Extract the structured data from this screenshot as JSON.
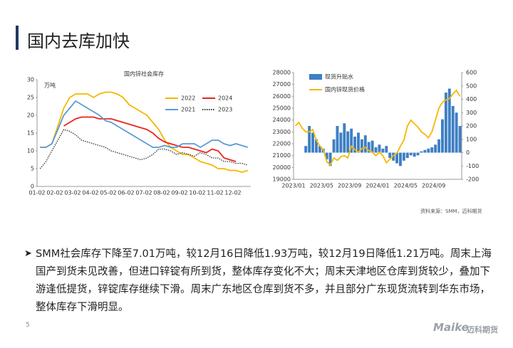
{
  "header": {
    "title": "国内去库加快"
  },
  "chart_data": [
    {
      "type": "line",
      "title": "国内锌社会库存",
      "y_unit_label": "万吨",
      "categories": [
        "01-02",
        null,
        null,
        "02-02",
        null,
        null,
        "03-02",
        null,
        null,
        "04-02",
        null,
        null,
        "05-02",
        null,
        null,
        "06-02",
        null,
        null,
        "07-02",
        null,
        null,
        "08-02",
        null,
        null,
        "09-02",
        null,
        null,
        "10-02",
        null,
        null,
        "11-02",
        null,
        null,
        "12-02",
        null,
        null
      ],
      "ylim": [
        0,
        30
      ],
      "yticks": [
        0,
        5,
        10,
        15,
        20,
        25,
        30
      ],
      "grid": false,
      "legend": "upper right",
      "series": [
        {
          "name": "2022",
          "color": "#f5b800",
          "style": "solid",
          "values": [
            11,
            11,
            12,
            17,
            22,
            25,
            26,
            26,
            26,
            25,
            26,
            26.5,
            26.5,
            26,
            25,
            23,
            22,
            21,
            20,
            18,
            16,
            13,
            11,
            10,
            9,
            9,
            8,
            7,
            6.5,
            6,
            5,
            5,
            4.5,
            4.5,
            4,
            4.5
          ]
        },
        {
          "name": "2024",
          "color": "#e8251f",
          "style": "solid",
          "values": [
            null,
            null,
            null,
            null,
            17,
            18,
            19,
            19.5,
            19.5,
            19.5,
            19,
            19,
            19,
            18.5,
            18,
            17.5,
            17,
            16.5,
            16,
            15,
            13.5,
            12.5,
            12,
            11.5,
            11,
            11,
            10.5,
            10,
            9.5,
            10.5,
            10,
            8,
            7.5,
            7,
            null,
            null
          ]
        },
        {
          "name": "2021",
          "color": "#5b9bd5",
          "style": "solid",
          "values": [
            11,
            11,
            12,
            16,
            20,
            22,
            24,
            23,
            22,
            21,
            20,
            18.5,
            18,
            17,
            16,
            15,
            14,
            13,
            12,
            11,
            11,
            11.5,
            11,
            11,
            12,
            12,
            12,
            11,
            12,
            13,
            13,
            12,
            11.5,
            12,
            11.5,
            11
          ]
        },
        {
          "name": "2023",
          "color": "#333333",
          "style": "dotted",
          "values": [
            5,
            7,
            10,
            13,
            16,
            15.5,
            14.5,
            13,
            12.5,
            12,
            11.5,
            11,
            10,
            9.5,
            9,
            8.5,
            8,
            7.5,
            8,
            9,
            10.5,
            10.5,
            10,
            9,
            9.5,
            9,
            8.5,
            9.5,
            9,
            8,
            8,
            7,
            7,
            6.5,
            6.5,
            6
          ]
        }
      ]
    },
    {
      "type": "combo",
      "legend": "upper left",
      "categories": [
        "2023/01",
        null,
        null,
        null,
        null,
        null,
        null,
        null,
        "2023/05",
        null,
        null,
        null,
        null,
        null,
        null,
        null,
        "2023/09",
        null,
        null,
        null,
        null,
        null,
        null,
        null,
        "2024/01",
        null,
        null,
        null,
        null,
        null,
        null,
        null,
        "2024/05",
        null,
        null,
        null,
        null,
        null,
        null,
        null,
        "2024/09",
        null,
        null,
        null,
        null,
        null,
        null,
        null
      ],
      "ylim": [
        19000,
        28000
      ],
      "yticks": [
        19000,
        20000,
        21000,
        22000,
        23000,
        24000,
        25000,
        26000,
        27000,
        28000
      ],
      "y2lim": [
        -200,
        600
      ],
      "y2ticks": [
        -200,
        -100,
        0,
        100,
        200,
        300,
        400,
        500,
        600
      ],
      "series": [
        {
          "name": "现货升贴水",
          "type": "bar",
          "axis": "y2",
          "color": "#3f7fc4",
          "values": [
            null,
            null,
            null,
            50,
            200,
            150,
            100,
            50,
            30,
            -50,
            -100,
            100,
            200,
            150,
            220,
            160,
            180,
            120,
            150,
            100,
            130,
            80,
            90,
            40,
            60,
            30,
            50,
            -40,
            -60,
            -80,
            -100,
            -60,
            -40,
            -20,
            -30,
            -20,
            10,
            20,
            30,
            40,
            60,
            100,
            250,
            450,
            480,
            350,
            300,
            200
          ]
        },
        {
          "name": "国内锌现货价格",
          "type": "line",
          "color": "#f5b800",
          "values": [
            23500,
            23800,
            23300,
            23000,
            23000,
            23200,
            22300,
            21800,
            21500,
            20500,
            20200,
            20800,
            20600,
            20900,
            21000,
            20800,
            21800,
            21500,
            21300,
            21600,
            21700,
            21400,
            21300,
            21000,
            21300,
            21000,
            20400,
            20700,
            21000,
            21200,
            21800,
            22300,
            23500,
            24000,
            23700,
            23400,
            23000,
            22800,
            22500,
            23000,
            24000,
            25000,
            25500,
            25700,
            25800,
            26200,
            26500,
            26000
          ]
        }
      ]
    }
  ],
  "source": "资料来源：SMM，迈科期货",
  "body": {
    "bullet": "SMM社会库存下降至7.01万吨，较12月16日降低1.93万吨，较12月19日降低1.21万吨。周末上海国产到货未见改善，但进口锌锭有所到货，整体库存变化不大；周末天津地区仓库到货较少，叠加下游逢低提货，锌锭库存继续下滑。周末广东地区仓库到货不多，并且部分广东现货流转到华东市场，整体库存下滑明显。"
  },
  "footer": {
    "page_number": "5",
    "logo": "Maike",
    "logo_cn": "迈科期货"
  }
}
